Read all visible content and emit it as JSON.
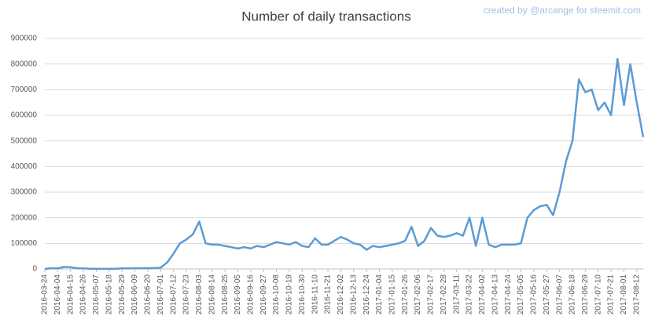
{
  "chart_data": {
    "type": "line",
    "title": "Number of daily transactions",
    "annotation": "created by @arcange for steemit.com",
    "categories": [
      "2016-03-24",
      null,
      "2016-04-04",
      null,
      "2016-04-15",
      null,
      "2016-04-26",
      null,
      "2016-05-07",
      null,
      "2016-05-18",
      null,
      "2016-05-29",
      null,
      "2016-06-09",
      null,
      "2016-06-20",
      null,
      "2016-07-01",
      null,
      "2016-07-12",
      null,
      "2016-07-23",
      null,
      "2016-08-03",
      null,
      "2016-08-14",
      null,
      "2016-08-25",
      null,
      "2016-09-05",
      null,
      "2016-09-16",
      null,
      "2016-09-27",
      null,
      "2016-10-08",
      null,
      "2016-10-19",
      null,
      "2016-10-30",
      null,
      "2016-11-10",
      null,
      "2016-11-21",
      null,
      "2016-12-02",
      null,
      "2016-12-13",
      null,
      "2016-12-24",
      null,
      "2017-01-04",
      null,
      "2017-01-15",
      null,
      "2017-01-26",
      null,
      "2017-02-06",
      null,
      "2017-02-17",
      null,
      "2017-02-28",
      null,
      "2017-03-11",
      null,
      "2017-03-22",
      null,
      "2017-04-02",
      null,
      "2017-04-13",
      null,
      "2017-04-24",
      null,
      "2017-05-05",
      null,
      "2017-05-16",
      null,
      "2017-05-27",
      null,
      "2017-06-07",
      null,
      "2017-06-18",
      null,
      "2017-06-29",
      null,
      "2017-07-10",
      null,
      "2017-07-21",
      null,
      "2017-08-01",
      null,
      "2017-08-12",
      null
    ],
    "series": [
      {
        "name": "Transactions",
        "color": "#5b9bd5",
        "values": [
          0,
          3000,
          2000,
          8000,
          7000,
          3000,
          2000,
          1000,
          1000,
          1000,
          1000,
          1000,
          2000,
          2000,
          3000,
          3000,
          3000,
          4000,
          5000,
          25000,
          60000,
          100000,
          115000,
          135000,
          185000,
          100000,
          95000,
          95000,
          90000,
          85000,
          80000,
          85000,
          80000,
          90000,
          85000,
          95000,
          105000,
          100000,
          95000,
          105000,
          90000,
          85000,
          120000,
          95000,
          95000,
          110000,
          125000,
          115000,
          100000,
          95000,
          75000,
          90000,
          85000,
          90000,
          95000,
          100000,
          110000,
          165000,
          90000,
          110000,
          160000,
          130000,
          125000,
          130000,
          140000,
          130000,
          200000,
          90000,
          200000,
          95000,
          85000,
          95000,
          95000,
          95000,
          100000,
          200000,
          230000,
          245000,
          250000,
          210000,
          300000,
          420000,
          500000,
          740000,
          690000,
          700000,
          620000,
          650000,
          600000,
          820000,
          640000,
          800000,
          650000,
          515000
        ]
      }
    ],
    "ylim": [
      0,
      900000
    ],
    "yticks": [
      0,
      100000,
      200000,
      300000,
      400000,
      500000,
      600000,
      700000,
      800000,
      900000
    ],
    "grid": true
  }
}
